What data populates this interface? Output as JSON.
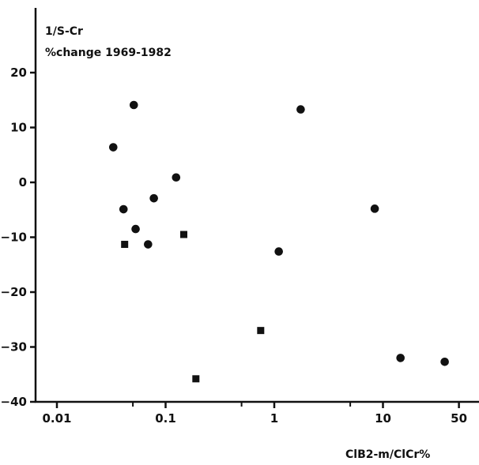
{
  "chart_data": {
    "type": "scatter",
    "title": "",
    "ylabel_line1": "1/S-Cr",
    "ylabel_line2": "%change  1969-1982",
    "xlabel": "ClB2-m/ClCr%",
    "x_scale": "log",
    "xlim": [
      0.01,
      100
    ],
    "ylim": [
      -40,
      27
    ],
    "grid": false,
    "x_ticks": [
      {
        "value": 0.01,
        "label": "0.01"
      },
      {
        "value": 0.1,
        "label": "0.1"
      },
      {
        "value": 1,
        "label": "1"
      },
      {
        "value": 10,
        "label": "10"
      },
      {
        "value": 50,
        "label": "50"
      }
    ],
    "x_minor_ticks": [
      0.05,
      0.5,
      5
    ],
    "y_ticks": [
      {
        "value": 20,
        "label": "20"
      },
      {
        "value": 10,
        "label": "10"
      },
      {
        "value": 0,
        "label": "0"
      },
      {
        "value": -10,
        "label": "-10"
      },
      {
        "value": -20,
        "label": "-20"
      },
      {
        "value": -30,
        "label": "-30"
      },
      {
        "value": -40,
        "label": "-40"
      }
    ],
    "series": [
      {
        "marker": "circle",
        "points": [
          {
            "x": 0.033,
            "y": 6.4
          },
          {
            "x": 0.041,
            "y": -4.9
          },
          {
            "x": 0.051,
            "y": 14.1
          },
          {
            "x": 0.053,
            "y": -8.5
          },
          {
            "x": 0.069,
            "y": -11.3
          },
          {
            "x": 0.078,
            "y": -2.9
          },
          {
            "x": 0.125,
            "y": 0.9
          },
          {
            "x": 1.1,
            "y": -12.6
          },
          {
            "x": 1.75,
            "y": 13.3
          },
          {
            "x": 8.4,
            "y": -4.8
          },
          {
            "x": 14.5,
            "y": -32.0
          },
          {
            "x": 37.0,
            "y": -32.7
          }
        ]
      },
      {
        "marker": "square",
        "points": [
          {
            "x": 0.042,
            "y": -11.3
          },
          {
            "x": 0.147,
            "y": -9.5
          },
          {
            "x": 0.19,
            "y": -35.8
          },
          {
            "x": 0.75,
            "y": -27.0
          }
        ]
      }
    ]
  }
}
